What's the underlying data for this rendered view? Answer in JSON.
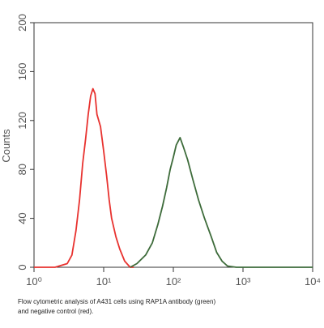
{
  "chart_data": {
    "type": "line",
    "y_label": "Counts",
    "caption": [
      "Flow cytometric analysis of A431 cells using RAP1A antibody (green)",
      "and negative control (red)."
    ],
    "xscale": "log",
    "xlim": [
      1,
      10000
    ],
    "xticks": [
      {
        "value": 1,
        "label": "10⁰"
      },
      {
        "value": 10,
        "label": "10¹"
      },
      {
        "value": 100,
        "label": "10²"
      },
      {
        "value": 1000,
        "label": "10³"
      },
      {
        "value": 10000,
        "label": "10⁴"
      }
    ],
    "ylim": [
      0,
      200
    ],
    "yticks": [
      0,
      40,
      80,
      120,
      160,
      200
    ],
    "series": [
      {
        "color": "#e8322f",
        "x": [
          1,
          2,
          3,
          3.5,
          4,
          4.5,
          5,
          5.5,
          6,
          6.5,
          7,
          7.5,
          8,
          9,
          10,
          11,
          12,
          13,
          15,
          17,
          20,
          24,
          27
        ],
        "values": [
          0,
          0,
          3,
          10,
          30,
          55,
          85,
          105,
          125,
          140,
          146,
          142,
          125,
          115,
          95,
          75,
          55,
          40,
          25,
          15,
          5,
          0,
          0
        ]
      },
      {
        "color": "#3d6b3a",
        "x": [
          24,
          30,
          40,
          50,
          60,
          70,
          80,
          90,
          100,
          110,
          125,
          140,
          160,
          190,
          230,
          280,
          350,
          420,
          500,
          600,
          800,
          10000
        ],
        "values": [
          0,
          3,
          10,
          20,
          35,
          50,
          65,
          80,
          90,
          100,
          106,
          98,
          88,
          72,
          55,
          40,
          25,
          12,
          5,
          1,
          0,
          0
        ]
      }
    ]
  }
}
